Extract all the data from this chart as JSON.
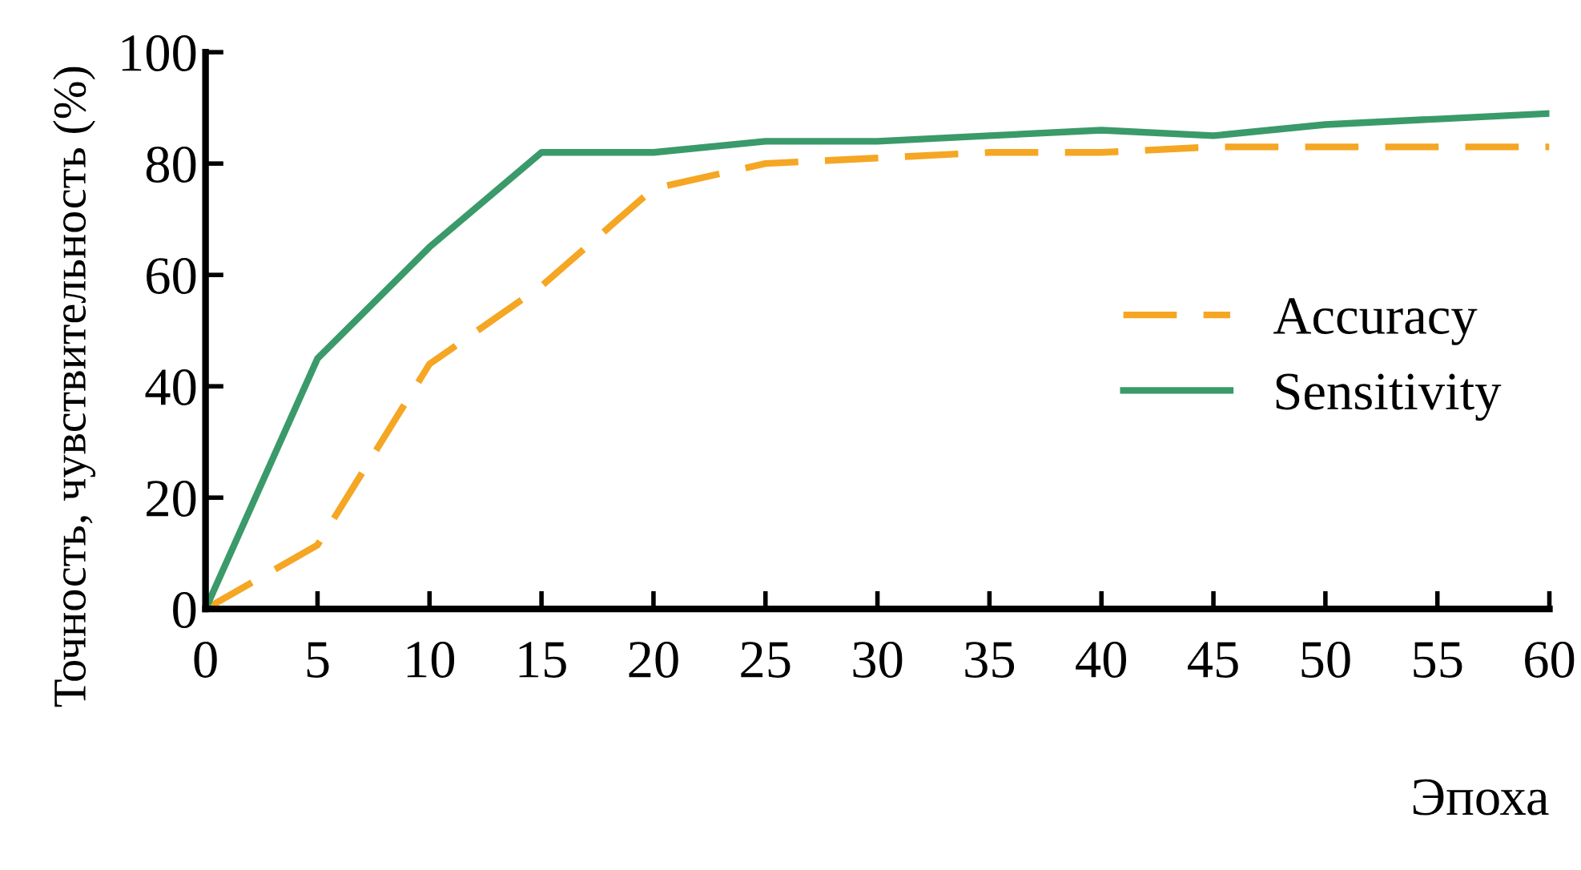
{
  "chart_data": {
    "type": "line",
    "xlabel": "Эпоха",
    "ylabel": "Точность, чувствительность (%)",
    "x": [
      0,
      5,
      10,
      15,
      20,
      25,
      30,
      35,
      40,
      45,
      50,
      55,
      60
    ],
    "series": [
      {
        "name": "Accuracy",
        "color": "#f5a623",
        "line_style": "dashed",
        "values": [
          0,
          11.5,
          44,
          58,
          75.5,
          80,
          81,
          82,
          82,
          83,
          83,
          83,
          83
        ]
      },
      {
        "name": "Sensitivity",
        "color": "#3a9a6a",
        "line_style": "solid",
        "values": [
          0,
          45,
          65,
          82,
          82,
          84,
          84,
          85,
          86,
          85,
          87,
          88,
          89
        ]
      }
    ],
    "xlim": [
      0,
      60
    ],
    "xticks": [
      0,
      5,
      10,
      15,
      20,
      25,
      30,
      35,
      40,
      45,
      50,
      55,
      60
    ],
    "ylim": [
      0,
      100
    ],
    "yticks": [
      0,
      20,
      40,
      60,
      80,
      100
    ],
    "grid": false,
    "legend": "right",
    "marker": "none"
  }
}
